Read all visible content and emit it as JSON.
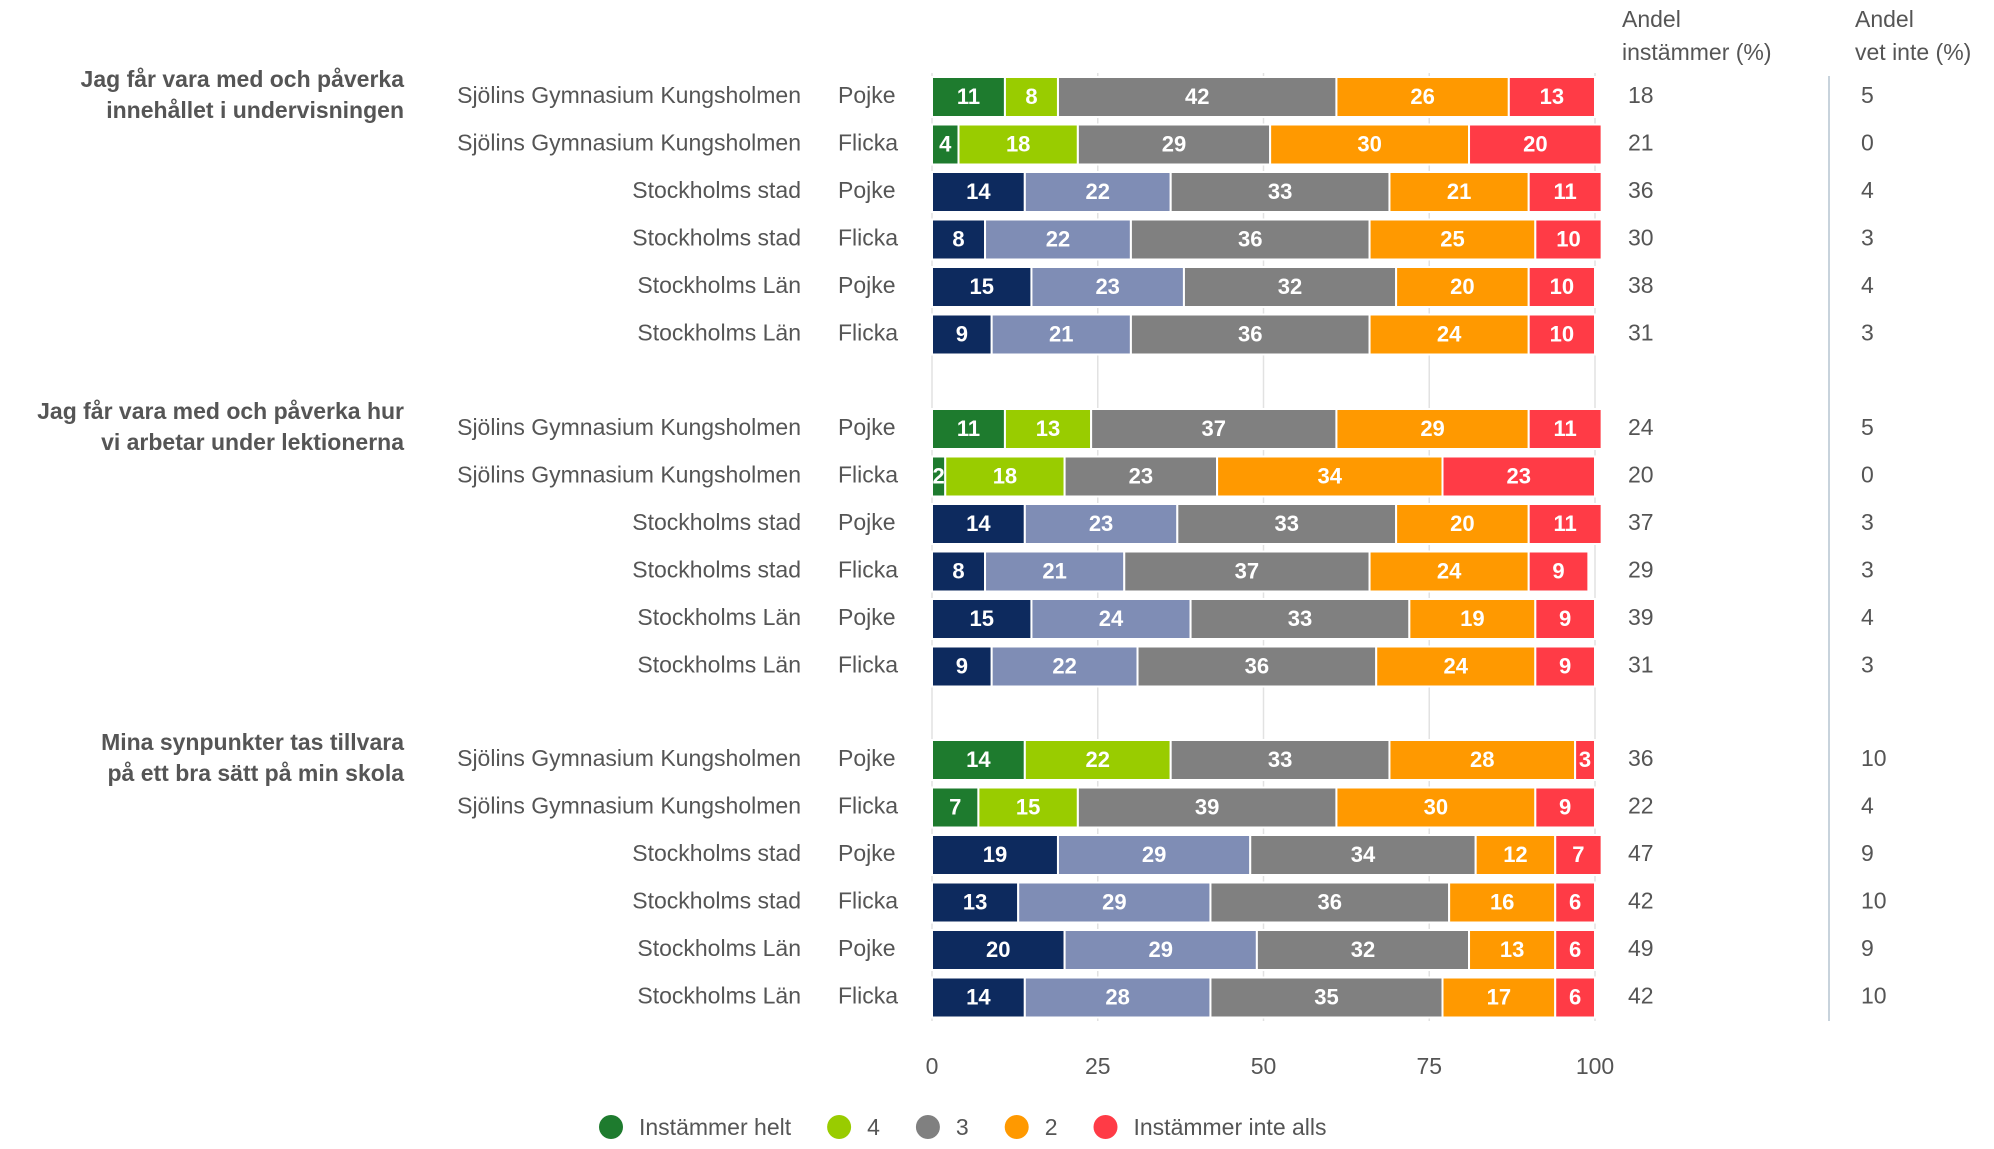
{
  "chart_data": {
    "type": "stacked-bar-horizontal",
    "agree_header": [
      "Andel",
      "instämmer (%)"
    ],
    "dontknow_header": [
      "Andel",
      "vet inte (%)"
    ],
    "xlim": [
      0,
      100
    ],
    "xticks": [
      0,
      25,
      50,
      75,
      100
    ],
    "grid": true,
    "highlight_unit": "Sjölins Gymnasium Kungsholmen",
    "series": [
      {
        "name": "Instämmer helt",
        "color": "#1e7b2e",
        "alt_color": "#0d2a5e"
      },
      {
        "name": "4",
        "color": "#99cc00",
        "alt_color": "#7f8db5"
      },
      {
        "name": "3",
        "color": "#808080",
        "alt_color": "#808080"
      },
      {
        "name": "2",
        "color": "#ff9900",
        "alt_color": "#ff9900"
      },
      {
        "name": "Instämmer inte alls",
        "color": "#ff3b46",
        "alt_color": "#ff3b46"
      }
    ],
    "groups": [
      {
        "question": [
          "Jag får vara med och påverka",
          "innehållet i undervisningen"
        ],
        "rows": [
          {
            "unit": "Sjölins Gymnasium Kungsholmen",
            "gender": "Pojke",
            "values": [
              11,
              8,
              42,
              26,
              13
            ],
            "agree": 18,
            "dontknow": 5
          },
          {
            "unit": "Sjölins Gymnasium Kungsholmen",
            "gender": "Flicka",
            "values": [
              4,
              18,
              29,
              30,
              20
            ],
            "agree": 21,
            "dontknow": 0
          },
          {
            "unit": "Stockholms stad",
            "gender": "Pojke",
            "values": [
              14,
              22,
              33,
              21,
              11
            ],
            "agree": 36,
            "dontknow": 4
          },
          {
            "unit": "Stockholms stad",
            "gender": "Flicka",
            "values": [
              8,
              22,
              36,
              25,
              10
            ],
            "agree": 30,
            "dontknow": 3
          },
          {
            "unit": "Stockholms Län",
            "gender": "Pojke",
            "values": [
              15,
              23,
              32,
              20,
              10
            ],
            "agree": 38,
            "dontknow": 4
          },
          {
            "unit": "Stockholms Län",
            "gender": "Flicka",
            "values": [
              9,
              21,
              36,
              24,
              10
            ],
            "agree": 31,
            "dontknow": 3
          }
        ]
      },
      {
        "question": [
          "Jag får vara med och påverka hur",
          "vi arbetar under lektionerna"
        ],
        "rows": [
          {
            "unit": "Sjölins Gymnasium Kungsholmen",
            "gender": "Pojke",
            "values": [
              11,
              13,
              37,
              29,
              11
            ],
            "agree": 24,
            "dontknow": 5
          },
          {
            "unit": "Sjölins Gymnasium Kungsholmen",
            "gender": "Flicka",
            "values": [
              2,
              18,
              23,
              34,
              23
            ],
            "agree": 20,
            "dontknow": 0
          },
          {
            "unit": "Stockholms stad",
            "gender": "Pojke",
            "values": [
              14,
              23,
              33,
              20,
              11
            ],
            "agree": 37,
            "dontknow": 3
          },
          {
            "unit": "Stockholms stad",
            "gender": "Flicka",
            "values": [
              8,
              21,
              37,
              24,
              9
            ],
            "agree": 29,
            "dontknow": 3
          },
          {
            "unit": "Stockholms Län",
            "gender": "Pojke",
            "values": [
              15,
              24,
              33,
              19,
              9
            ],
            "agree": 39,
            "dontknow": 4
          },
          {
            "unit": "Stockholms Län",
            "gender": "Flicka",
            "values": [
              9,
              22,
              36,
              24,
              9
            ],
            "agree": 31,
            "dontknow": 3
          }
        ]
      },
      {
        "question": [
          "Mina synpunkter tas tillvara",
          "på ett bra sätt på min skola"
        ],
        "rows": [
          {
            "unit": "Sjölins Gymnasium Kungsholmen",
            "gender": "Pojke",
            "values": [
              14,
              22,
              33,
              28,
              3
            ],
            "agree": 36,
            "dontknow": 10
          },
          {
            "unit": "Sjölins Gymnasium Kungsholmen",
            "gender": "Flicka",
            "values": [
              7,
              15,
              39,
              30,
              9
            ],
            "agree": 22,
            "dontknow": 4
          },
          {
            "unit": "Stockholms stad",
            "gender": "Pojke",
            "values": [
              19,
              29,
              34,
              12,
              7
            ],
            "agree": 47,
            "dontknow": 9
          },
          {
            "unit": "Stockholms stad",
            "gender": "Flicka",
            "values": [
              13,
              29,
              36,
              16,
              6
            ],
            "agree": 42,
            "dontknow": 10
          },
          {
            "unit": "Stockholms Län",
            "gender": "Pojke",
            "values": [
              20,
              29,
              32,
              13,
              6
            ],
            "agree": 49,
            "dontknow": 9
          },
          {
            "unit": "Stockholms Län",
            "gender": "Flicka",
            "values": [
              14,
              28,
              35,
              17,
              6
            ],
            "agree": 42,
            "dontknow": 10
          }
        ]
      }
    ]
  }
}
